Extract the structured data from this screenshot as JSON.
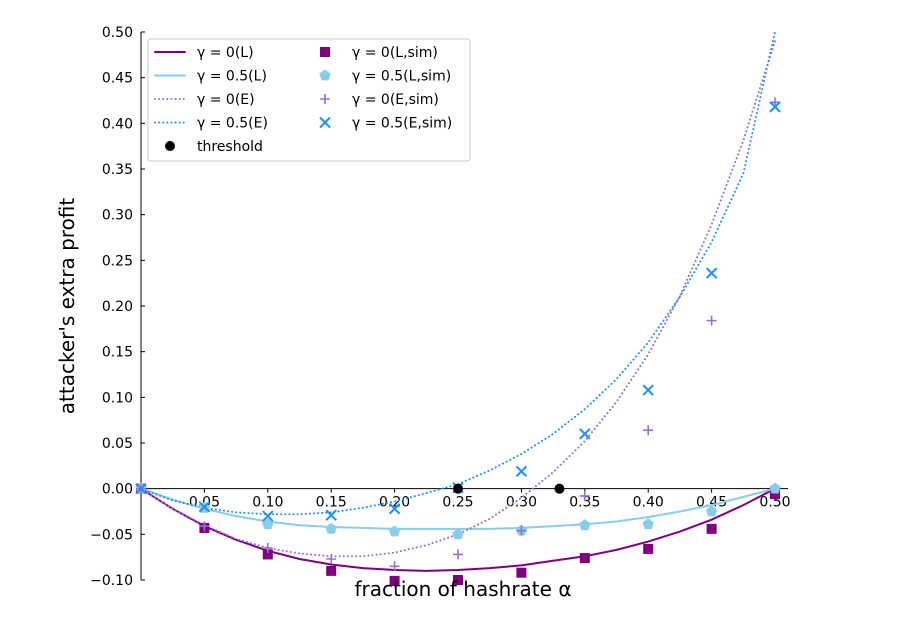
{
  "chart_data": {
    "type": "line",
    "title": "",
    "xlabel": "fraction of hashrate α",
    "ylabel": "attacker's extra profit",
    "xlim": [
      0,
      0.5
    ],
    "ylim": [
      -0.1,
      0.5
    ],
    "xticks": [
      "0.05",
      "0.10",
      "0.15",
      "0.20",
      "0.25",
      "0.30",
      "0.35",
      "0.40",
      "0.45",
      "0.50"
    ],
    "yticks": [
      "−0.10",
      "−0.05",
      "0.00",
      "0.05",
      "0.10",
      "0.15",
      "0.20",
      "0.25",
      "0.30",
      "0.35",
      "0.40",
      "0.45",
      "0.50"
    ],
    "grid": false,
    "legend_position": "top-left",
    "series": [
      {
        "name": "γ = 0(L)",
        "kind": "line",
        "style": "solid",
        "color": "#800080",
        "x": [
          0,
          0.025,
          0.05,
          0.075,
          0.1,
          0.125,
          0.15,
          0.175,
          0.2,
          0.225,
          0.25,
          0.275,
          0.3,
          0.325,
          0.35,
          0.375,
          0.4,
          0.425,
          0.45,
          0.475,
          0.5
        ],
        "y": [
          0,
          -0.022,
          -0.041,
          -0.056,
          -0.068,
          -0.077,
          -0.083,
          -0.087,
          -0.089,
          -0.09,
          -0.089,
          -0.087,
          -0.084,
          -0.079,
          -0.074,
          -0.067,
          -0.058,
          -0.047,
          -0.034,
          -0.018,
          0
        ]
      },
      {
        "name": "γ = 0.5(L)",
        "kind": "line",
        "style": "solid",
        "color": "#87ceeb",
        "x": [
          0,
          0.025,
          0.05,
          0.075,
          0.1,
          0.125,
          0.15,
          0.175,
          0.2,
          0.225,
          0.25,
          0.275,
          0.3,
          0.325,
          0.35,
          0.375,
          0.4,
          0.425,
          0.45,
          0.475,
          0.5
        ],
        "y": [
          0,
          -0.012,
          -0.022,
          -0.03,
          -0.036,
          -0.04,
          -0.042,
          -0.043,
          -0.044,
          -0.044,
          -0.044,
          -0.044,
          -0.043,
          -0.041,
          -0.039,
          -0.036,
          -0.031,
          -0.025,
          -0.018,
          -0.009,
          0
        ]
      },
      {
        "name": "γ = 0(E)",
        "kind": "line",
        "style": "dotted",
        "color": "#9370db",
        "x": [
          0,
          0.025,
          0.05,
          0.075,
          0.1,
          0.125,
          0.15,
          0.175,
          0.2,
          0.225,
          0.25,
          0.275,
          0.3,
          0.325,
          0.35,
          0.375,
          0.4,
          0.425,
          0.45,
          0.475,
          0.5
        ],
        "y": [
          0,
          -0.022,
          -0.04,
          -0.055,
          -0.065,
          -0.071,
          -0.074,
          -0.074,
          -0.07,
          -0.062,
          -0.05,
          -0.033,
          -0.01,
          0.018,
          0.052,
          0.095,
          0.147,
          0.211,
          0.289,
          0.381,
          0.49
        ]
      },
      {
        "name": "γ = 0.5(E)",
        "kind": "line",
        "style": "dotted",
        "color": "#1e90ff",
        "x": [
          0,
          0.025,
          0.05,
          0.075,
          0.1,
          0.125,
          0.15,
          0.175,
          0.2,
          0.225,
          0.25,
          0.275,
          0.3,
          0.325,
          0.35,
          0.375,
          0.4,
          0.425,
          0.45,
          0.475,
          0.5
        ],
        "y": [
          0,
          -0.013,
          -0.021,
          -0.026,
          -0.028,
          -0.028,
          -0.026,
          -0.021,
          -0.014,
          -0.005,
          0.005,
          0.02,
          0.038,
          0.06,
          0.087,
          0.12,
          0.16,
          0.21,
          0.27,
          0.345,
          0.5
        ]
      },
      {
        "name": "threshold",
        "kind": "scatter",
        "marker": "circle",
        "color": "#000000",
        "x": [
          0.25,
          0.33
        ],
        "y": [
          0,
          0
        ]
      },
      {
        "name": "γ = 0(L,sim)",
        "kind": "scatter",
        "marker": "square",
        "color": "#800080",
        "x": [
          0,
          0.05,
          0.1,
          0.15,
          0.2,
          0.25,
          0.3,
          0.35,
          0.4,
          0.45,
          0.5
        ],
        "y": [
          0,
          -0.043,
          -0.072,
          -0.09,
          -0.101,
          -0.1,
          -0.092,
          -0.076,
          -0.066,
          -0.044,
          -0.006
        ]
      },
      {
        "name": "γ = 0.5(L,sim)",
        "kind": "scatter",
        "marker": "pentagon",
        "color": "#87ceeb",
        "x": [
          0,
          0.05,
          0.1,
          0.15,
          0.2,
          0.25,
          0.3,
          0.35,
          0.4,
          0.45,
          0.5
        ],
        "y": [
          0,
          -0.021,
          -0.039,
          -0.044,
          -0.047,
          -0.05,
          -0.046,
          -0.04,
          -0.039,
          -0.025,
          0
        ]
      },
      {
        "name": "γ = 0(E,sim)",
        "kind": "scatter",
        "marker": "plus",
        "color": "#9370db",
        "x": [
          0,
          0.05,
          0.1,
          0.15,
          0.2,
          0.25,
          0.3,
          0.35,
          0.4,
          0.45,
          0.5
        ],
        "y": [
          0,
          -0.041,
          -0.065,
          -0.077,
          -0.085,
          -0.072,
          -0.046,
          -0.008,
          0.064,
          0.184,
          0.423
        ]
      },
      {
        "name": "γ = 0.5(E,sim)",
        "kind": "scatter",
        "marker": "x",
        "color": "#1e90ff",
        "x": [
          0,
          0.05,
          0.1,
          0.15,
          0.2,
          0.25,
          0.3,
          0.35,
          0.4,
          0.45,
          0.5
        ],
        "y": [
          0,
          -0.02,
          -0.03,
          -0.029,
          -0.022,
          0.001,
          0.019,
          0.06,
          0.108,
          0.236,
          0.418
        ]
      }
    ],
    "legend_columns": [
      [
        "γ = 0(L)",
        "γ = 0.5(L)",
        "γ = 0(E)",
        "γ = 0.5(E)",
        "threshold"
      ],
      [
        "γ = 0(L,sim)",
        "γ = 0.5(L,sim)",
        "γ = 0(E,sim)",
        "γ = 0.5(E,sim)"
      ]
    ]
  }
}
